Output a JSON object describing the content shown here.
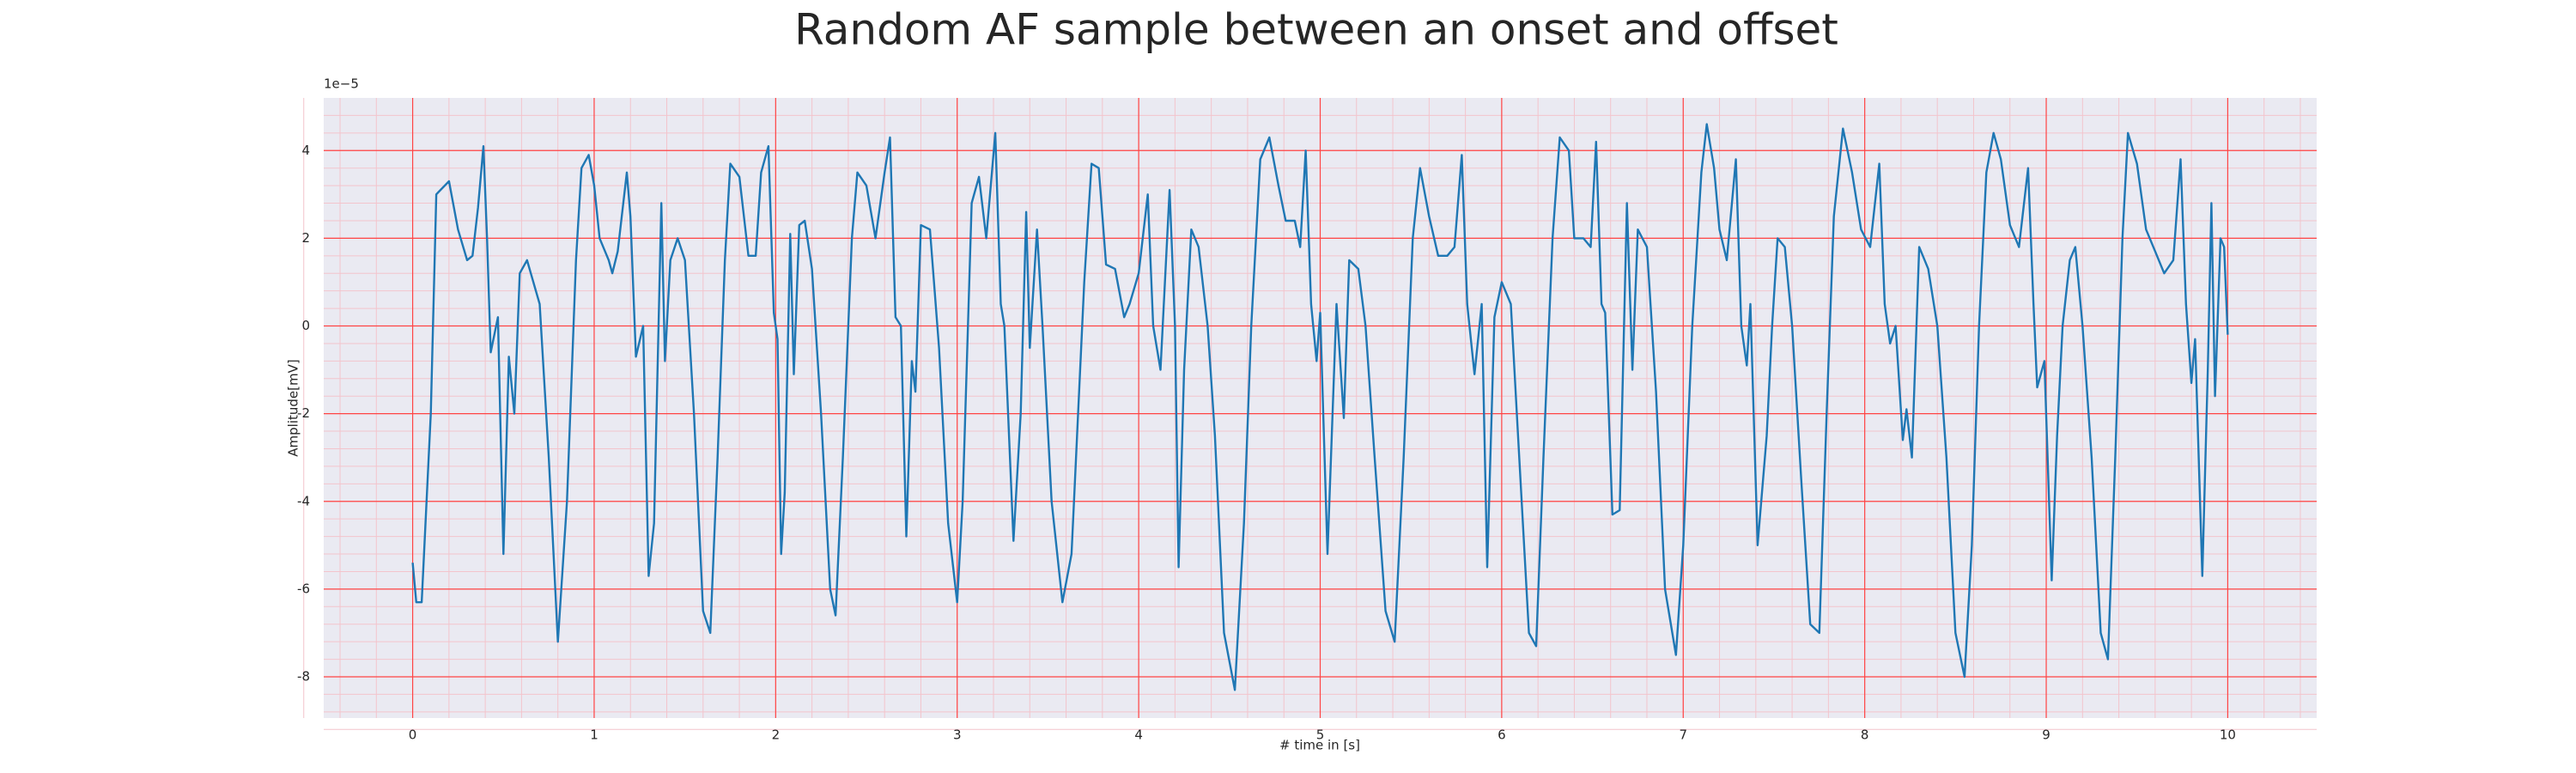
{
  "chart_data": {
    "type": "line",
    "title": "Random AF sample between an onset and offset",
    "xlabel": "# time in [s]",
    "ylabel": "Amplitude[mV]",
    "y_offset_text": "1e−5",
    "xlim": [
      -0.49,
      10.49
    ],
    "ylim": [
      -8.94,
      5.2
    ],
    "xticks": [
      0,
      1,
      2,
      3,
      4,
      5,
      6,
      7,
      8,
      9,
      10
    ],
    "yticks": [
      -8,
      -6,
      -4,
      -2,
      0,
      2,
      4
    ],
    "grid": true,
    "minor_grid": true,
    "grid_color": "#ff4444",
    "minor_grid_color": "#f3c4cc",
    "background": "#eaeaf2",
    "series": [
      {
        "color": "#1f77b4",
        "x": [
          0.0,
          0.02,
          0.05,
          0.1,
          0.13,
          0.2,
          0.25,
          0.3,
          0.33,
          0.36,
          0.39,
          0.41,
          0.43,
          0.47,
          0.5,
          0.53,
          0.56,
          0.59,
          0.63,
          0.7,
          0.75,
          0.8,
          0.85,
          0.9,
          0.93,
          0.97,
          1.0,
          1.03,
          1.08,
          1.1,
          1.13,
          1.18,
          1.2,
          1.23,
          1.27,
          1.3,
          1.33,
          1.37,
          1.39,
          1.42,
          1.46,
          1.5,
          1.55,
          1.6,
          1.64,
          1.68,
          1.72,
          1.75,
          1.8,
          1.85,
          1.89,
          1.92,
          1.96,
          1.99,
          2.01,
          2.03,
          2.05,
          2.08,
          2.1,
          2.13,
          2.16,
          2.2,
          2.25,
          2.3,
          2.33,
          2.37,
          2.42,
          2.45,
          2.5,
          2.55,
          2.6,
          2.63,
          2.66,
          2.69,
          2.72,
          2.75,
          2.77,
          2.8,
          2.85,
          2.9,
          2.95,
          3.0,
          3.03,
          3.08,
          3.12,
          3.16,
          3.21,
          3.24,
          3.26,
          3.31,
          3.35,
          3.38,
          3.4,
          3.44,
          3.47,
          3.52,
          3.58,
          3.63,
          3.7,
          3.74,
          3.78,
          3.82,
          3.87,
          3.92,
          3.95,
          4.0,
          4.05,
          4.08,
          4.12,
          4.17,
          4.2,
          4.22,
          4.25,
          4.29,
          4.33,
          4.38,
          4.42,
          4.47,
          4.53,
          4.58,
          4.62,
          4.67,
          4.72,
          4.77,
          4.81,
          4.86,
          4.89,
          4.92,
          4.95,
          4.98,
          5.0,
          5.04,
          5.09,
          5.13,
          5.16,
          5.21,
          5.25,
          5.3,
          5.36,
          5.41,
          5.46,
          5.51,
          5.55,
          5.6,
          5.65,
          5.7,
          5.74,
          5.78,
          5.81,
          5.85,
          5.89,
          5.92,
          5.96,
          6.0,
          6.05,
          6.09,
          6.15,
          6.19,
          6.23,
          6.28,
          6.32,
          6.37,
          6.4,
          6.45,
          6.49,
          6.52,
          6.55,
          6.57,
          6.61,
          6.65,
          6.69,
          6.72,
          6.75,
          6.8,
          6.85,
          6.9,
          6.96,
          7.0,
          7.05,
          7.1,
          7.13,
          7.17,
          7.2,
          7.24,
          7.29,
          7.32,
          7.35,
          7.37,
          7.41,
          7.46,
          7.49,
          7.52,
          7.56,
          7.6,
          7.65,
          7.7,
          7.75,
          7.79,
          7.83,
          7.88,
          7.93,
          7.98,
          8.03,
          8.08,
          8.11,
          8.14,
          8.17,
          8.21,
          8.23,
          8.26,
          8.3,
          8.35,
          8.4,
          8.45,
          8.5,
          8.55,
          8.59,
          8.63,
          8.67,
          8.71,
          8.75,
          8.8,
          8.85,
          8.9,
          8.93,
          8.95,
          8.99,
          9.03,
          9.06,
          9.09,
          9.13,
          9.16,
          9.2,
          9.25,
          9.3,
          9.34,
          9.38,
          9.42,
          9.45,
          9.5,
          9.55,
          9.6,
          9.65,
          9.7,
          9.74,
          9.77,
          9.8,
          9.82,
          9.86,
          9.89,
          9.91,
          9.93,
          9.96,
          9.98,
          10.0
        ],
        "values": [
          -5.4,
          -6.3,
          -6.3,
          -2,
          3.0,
          3.3,
          2.2,
          1.5,
          1.6,
          2.7,
          4.1,
          2.0,
          -0.6,
          0.2,
          -5.2,
          -0.7,
          -2.0,
          1.2,
          1.5,
          0.5,
          -3,
          -7.2,
          -4,
          1.5,
          3.6,
          3.9,
          3.2,
          2.0,
          1.5,
          1.2,
          1.7,
          3.5,
          2.5,
          -0.7,
          0,
          -5.7,
          -4.5,
          2.8,
          -0.8,
          1.5,
          2.0,
          1.5,
          -2,
          -6.5,
          -7.0,
          -3,
          1.5,
          3.7,
          3.4,
          1.6,
          1.6,
          3.5,
          4.1,
          0.3,
          -0.3,
          -5.2,
          -3.8,
          2.1,
          -1.1,
          2.3,
          2.4,
          1.3,
          -2,
          -6.0,
          -6.6,
          -3,
          2.0,
          3.5,
          3.2,
          2.0,
          3.5,
          4.3,
          0.2,
          0,
          -4.8,
          -0.8,
          -1.5,
          2.3,
          2.2,
          -0.5,
          -4.5,
          -6.3,
          -4,
          2.8,
          3.4,
          2.0,
          4.4,
          0.5,
          0,
          -4.9,
          -2,
          2.6,
          -0.5,
          2.2,
          0,
          -4,
          -6.3,
          -5.2,
          1.0,
          3.7,
          3.6,
          1.4,
          1.3,
          0.2,
          0.5,
          1.2,
          3.0,
          0,
          -1,
          3.1,
          0,
          -5.5,
          -1,
          2.2,
          1.8,
          0,
          -2.5,
          -7,
          -8.3,
          -4.5,
          0,
          3.8,
          4.3,
          3.2,
          2.4,
          2.4,
          1.8,
          4.0,
          0.5,
          -0.8,
          0.3,
          -5.2,
          0.5,
          -2.1,
          1.5,
          1.3,
          0,
          -3,
          -6.5,
          -7.2,
          -3,
          2,
          3.6,
          2.5,
          1.6,
          1.6,
          1.8,
          3.9,
          0.5,
          -1.1,
          0.5,
          -5.5,
          0.2,
          1.0,
          0.5,
          -2.5,
          -7.0,
          -7.3,
          -3,
          2.0,
          4.3,
          4.0,
          2.0,
          2.0,
          1.8,
          4.2,
          0.5,
          0.3,
          -4.3,
          -4.2,
          2.8,
          -1.0,
          2.2,
          1.8,
          -1.5,
          -6,
          -7.5,
          -5,
          0,
          3.5,
          4.6,
          3.6,
          2.2,
          1.5,
          3.8,
          0,
          -0.9,
          0.5,
          -5.0,
          -2.5,
          0,
          2.0,
          1.8,
          0,
          -3.5,
          -6.8,
          -7.0,
          -2,
          2.5,
          4.5,
          3.5,
          2.2,
          1.8,
          3.7,
          0.5,
          -0.4,
          0,
          -2.6,
          -1.9,
          -3,
          1.8,
          1.3,
          0,
          -3,
          -7,
          -8.0,
          -5,
          0,
          3.5,
          4.4,
          3.8,
          2.3,
          1.8,
          3.6,
          0.5,
          -1.4,
          -0.8,
          -5.8,
          -2.5,
          0,
          1.5,
          1.8,
          0,
          -3,
          -7.0,
          -7.6,
          -3,
          2.0,
          4.4,
          3.7,
          2.2,
          1.7,
          1.2,
          1.5,
          3.8,
          0.5,
          -1.3,
          -0.3,
          -5.7,
          -1,
          2.8,
          -1.6,
          2.0,
          1.8,
          -0.2
        ]
      }
    ]
  }
}
